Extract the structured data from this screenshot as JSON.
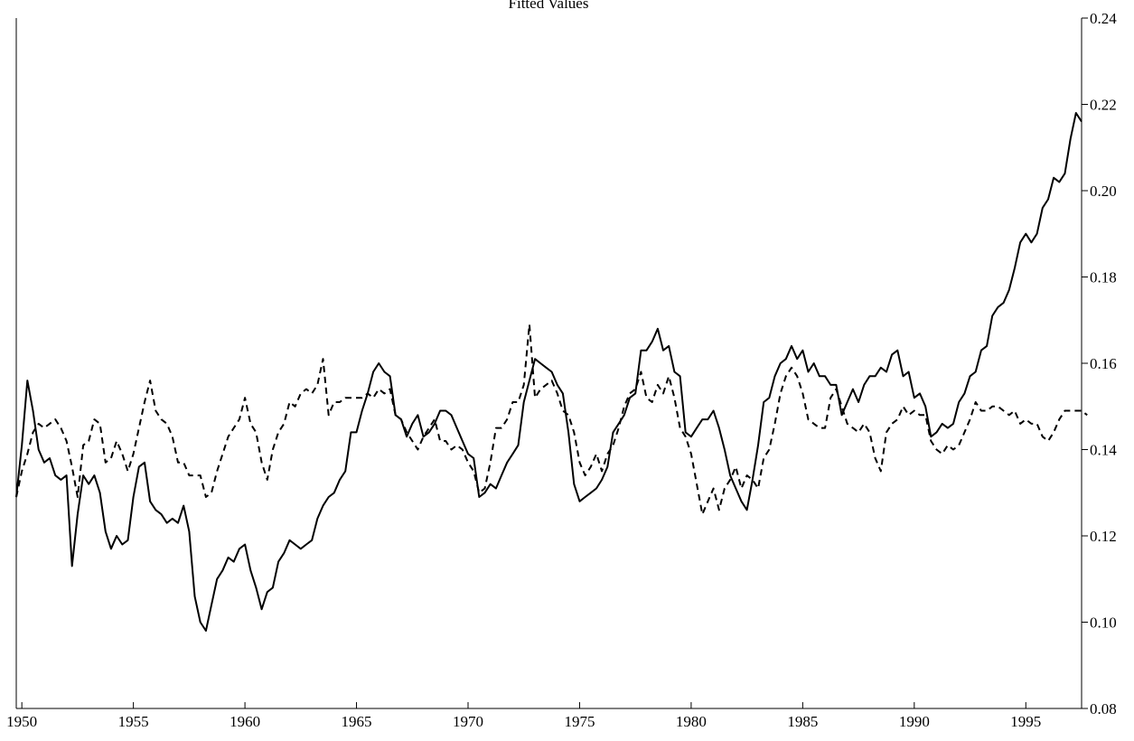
{
  "chart_data": {
    "type": "line",
    "title": "Fitted Values",
    "xlabel": "",
    "ylabel": "",
    "xlim": [
      1949.75,
      1997.5
    ],
    "ylim": [
      0.08,
      0.24
    ],
    "x_ticks": [
      1950,
      1955,
      1960,
      1965,
      1970,
      1975,
      1980,
      1985,
      1990,
      1995
    ],
    "x_tick_labels": [
      "1950",
      "1955",
      "1960",
      "1965",
      "1970",
      "1975",
      "1980",
      "1985",
      "1990",
      "1995"
    ],
    "y_ticks": [
      0.08,
      0.1,
      0.12,
      0.14,
      0.16,
      0.18,
      0.2,
      0.22,
      0.24
    ],
    "y_tick_labels": [
      "0.08",
      "0.10",
      "0.12",
      "0.14",
      "0.16",
      "0.18",
      "0.20",
      "0.22",
      "0.24"
    ],
    "y_axis_side": "right",
    "grid": false,
    "x_start": 1949.75,
    "x_step": 0.25,
    "series": [
      {
        "style": "solid",
        "color": "#000000",
        "values": [
          0.129,
          0.141,
          0.156,
          0.149,
          0.14,
          0.137,
          0.138,
          0.134,
          0.133,
          0.134,
          0.113,
          0.125,
          0.134,
          0.132,
          0.134,
          0.13,
          0.121,
          0.117,
          0.12,
          0.118,
          0.119,
          0.129,
          0.136,
          0.137,
          0.128,
          0.126,
          0.125,
          0.123,
          0.124,
          0.123,
          0.127,
          0.121,
          0.106,
          0.1,
          0.098,
          0.104,
          0.11,
          0.112,
          0.115,
          0.114,
          0.117,
          0.118,
          0.112,
          0.108,
          0.103,
          0.107,
          0.108,
          0.114,
          0.116,
          0.119,
          0.118,
          0.117,
          0.118,
          0.119,
          0.124,
          0.127,
          0.129,
          0.13,
          0.133,
          0.135,
          0.144,
          0.144,
          0.149,
          0.153,
          0.158,
          0.16,
          0.158,
          0.157,
          0.148,
          0.147,
          0.143,
          0.146,
          0.148,
          0.143,
          0.144,
          0.146,
          0.149,
          0.149,
          0.148,
          0.145,
          0.142,
          0.139,
          0.138,
          0.129,
          0.13,
          0.132,
          0.131,
          0.134,
          0.137,
          0.139,
          0.141,
          0.151,
          0.156,
          0.161,
          0.16,
          0.159,
          0.158,
          0.155,
          0.153,
          0.144,
          0.132,
          0.128,
          0.129,
          0.13,
          0.131,
          0.133,
          0.136,
          0.144,
          0.146,
          0.148,
          0.152,
          0.153,
          0.163,
          0.163,
          0.165,
          0.168,
          0.163,
          0.164,
          0.158,
          0.157,
          0.144,
          0.143,
          0.145,
          0.147,
          0.147,
          0.149,
          0.145,
          0.14,
          0.134,
          0.131,
          0.128,
          0.126,
          0.133,
          0.141,
          0.151,
          0.152,
          0.157,
          0.16,
          0.161,
          0.164,
          0.161,
          0.163,
          0.158,
          0.16,
          0.157,
          0.157,
          0.155,
          0.155,
          0.148,
          0.151,
          0.154,
          0.151,
          0.155,
          0.157,
          0.157,
          0.159,
          0.158,
          0.162,
          0.163,
          0.157,
          0.158,
          0.152,
          0.153,
          0.15,
          0.143,
          0.144,
          0.146,
          0.145,
          0.146,
          0.151,
          0.153,
          0.157,
          0.158,
          0.163,
          0.164,
          0.171,
          0.173,
          0.174,
          0.177,
          0.182,
          0.188,
          0.19,
          0.188,
          0.19,
          0.196,
          0.198,
          0.203,
          0.202,
          0.204,
          0.212,
          0.218,
          0.216
        ]
      },
      {
        "style": "dashed",
        "color": "#000000",
        "values": [
          0.129,
          0.135,
          0.139,
          0.144,
          0.146,
          0.145,
          0.146,
          0.147,
          0.145,
          0.142,
          0.136,
          0.129,
          0.141,
          0.142,
          0.147,
          0.146,
          0.137,
          0.138,
          0.142,
          0.139,
          0.135,
          0.139,
          0.145,
          0.151,
          0.156,
          0.149,
          0.147,
          0.146,
          0.143,
          0.137,
          0.137,
          0.134,
          0.134,
          0.134,
          0.129,
          0.13,
          0.135,
          0.139,
          0.143,
          0.145,
          0.147,
          0.152,
          0.146,
          0.144,
          0.137,
          0.133,
          0.14,
          0.144,
          0.146,
          0.151,
          0.15,
          0.153,
          0.154,
          0.153,
          0.155,
          0.161,
          0.148,
          0.151,
          0.151,
          0.152,
          0.152,
          0.152,
          0.152,
          0.153,
          0.152,
          0.154,
          0.153,
          0.154,
          0.148,
          0.147,
          0.144,
          0.142,
          0.14,
          0.143,
          0.145,
          0.147,
          0.142,
          0.142,
          0.14,
          0.141,
          0.14,
          0.137,
          0.135,
          0.13,
          0.131,
          0.137,
          0.145,
          0.145,
          0.147,
          0.151,
          0.151,
          0.155,
          0.169,
          0.152,
          0.154,
          0.155,
          0.156,
          0.153,
          0.149,
          0.148,
          0.144,
          0.137,
          0.134,
          0.136,
          0.139,
          0.135,
          0.139,
          0.141,
          0.145,
          0.15,
          0.153,
          0.154,
          0.158,
          0.152,
          0.151,
          0.155,
          0.153,
          0.157,
          0.152,
          0.145,
          0.143,
          0.139,
          0.132,
          0.125,
          0.128,
          0.131,
          0.126,
          0.131,
          0.133,
          0.136,
          0.131,
          0.134,
          0.133,
          0.131,
          0.138,
          0.14,
          0.146,
          0.153,
          0.157,
          0.159,
          0.157,
          0.153,
          0.147,
          0.146,
          0.145,
          0.145,
          0.152,
          0.154,
          0.15,
          0.146,
          0.145,
          0.144,
          0.146,
          0.144,
          0.138,
          0.135,
          0.144,
          0.146,
          0.147,
          0.15,
          0.148,
          0.149,
          0.148,
          0.148,
          0.142,
          0.14,
          0.139,
          0.141,
          0.14,
          0.141,
          0.144,
          0.147,
          0.151,
          0.149,
          0.149,
          0.15,
          0.15,
          0.149,
          0.148,
          0.149,
          0.146,
          0.147,
          0.146,
          0.146,
          0.143,
          0.142,
          0.144,
          0.147,
          0.149,
          0.149,
          0.149,
          0.149,
          0.148
        ]
      }
    ]
  }
}
